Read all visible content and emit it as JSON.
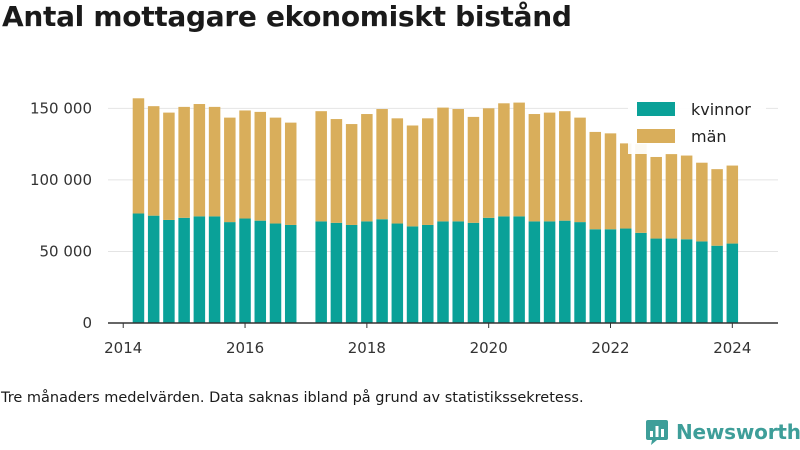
{
  "title": "Antal mottagare ekonomiskt bistånd",
  "caption": "Tre månaders medelvärden. Data saknas ibland på grund av statistikssekretess.",
  "brand": {
    "name": "Newsworthy",
    "color": "#3e9e99"
  },
  "colors": {
    "kvinnor": "#0aa198",
    "man": "#d9ae5b",
    "axis": "#333333",
    "grid": "#e4e4e4"
  },
  "chart_data": {
    "type": "bar",
    "stacked": true,
    "x_unit": "quarter",
    "x": [
      "2014-Q2",
      "2014-Q3",
      "2014-Q4",
      "2015-Q1",
      "2015-Q2",
      "2015-Q3",
      "2015-Q4",
      "2016-Q1",
      "2016-Q2",
      "2016-Q3",
      "2016-Q4",
      "2017-Q2",
      "2017-Q3",
      "2017-Q4",
      "2018-Q1",
      "2018-Q2",
      "2018-Q3",
      "2018-Q4",
      "2019-Q1",
      "2019-Q2",
      "2019-Q3",
      "2019-Q4",
      "2020-Q1",
      "2020-Q2",
      "2020-Q3",
      "2020-Q4",
      "2021-Q1",
      "2021-Q2",
      "2021-Q3",
      "2021-Q4",
      "2022-Q1",
      "2022-Q2",
      "2022-Q3",
      "2022-Q4",
      "2023-Q1",
      "2023-Q2",
      "2023-Q3",
      "2023-Q4",
      "2024-Q1"
    ],
    "series": [
      {
        "name": "kvinnor",
        "values": [
          76500,
          75000,
          72000,
          73500,
          74500,
          74500,
          70500,
          73000,
          71500,
          69500,
          68500,
          71000,
          70000,
          68500,
          71000,
          72500,
          69500,
          67500,
          68500,
          71000,
          71000,
          70000,
          73500,
          74500,
          74500,
          71000,
          71000,
          71500,
          70500,
          65500,
          65500,
          66000,
          63000,
          59000,
          59000,
          58500,
          57000,
          54000,
          55500
        ]
      },
      {
        "name": "män",
        "values": [
          80500,
          76500,
          75000,
          77500,
          78500,
          76500,
          73000,
          75500,
          76000,
          74000,
          71500,
          77000,
          72500,
          70500,
          75000,
          77000,
          73500,
          70500,
          74500,
          79500,
          78500,
          74000,
          76500,
          79000,
          79500,
          75000,
          76000,
          76500,
          73000,
          68000,
          67000,
          59500,
          62000,
          57000,
          59000,
          58500,
          55000,
          53500,
          54500
        ]
      }
    ],
    "xlim": [
      "2013-Q4",
      "2024-Q4"
    ],
    "x_ticks": [
      "2014",
      "2016",
      "2018",
      "2020",
      "2022",
      "2024"
    ],
    "y_ticks": [
      "0",
      "50 000",
      "100 000",
      "150 000"
    ],
    "ylim": [
      0,
      160000
    ],
    "legend": [
      "kvinnor",
      "män"
    ],
    "legend_position": "top-right",
    "grid": "horizontal"
  }
}
